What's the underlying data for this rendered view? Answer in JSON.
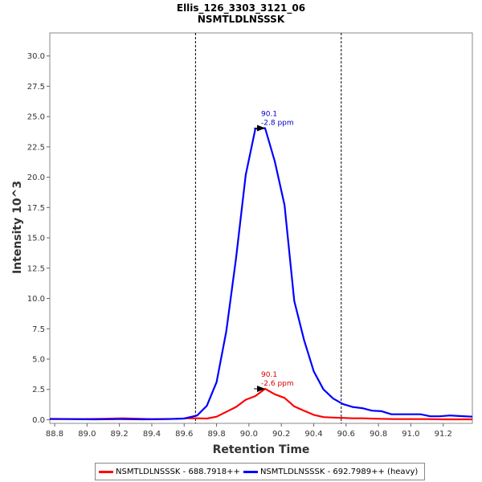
{
  "chart_data": {
    "type": "line",
    "title": "Ellis_126_3303_3121_06",
    "subtitle": "NSMTLDLNSSSK",
    "xlabel": "Retention Time",
    "ylabel": "Intensity 10^3",
    "xlim": [
      88.77,
      91.38
    ],
    "ylim": [
      -0.3,
      31.9
    ],
    "x_ticks": [
      "88.8",
      "89.0",
      "89.2",
      "89.4",
      "89.6",
      "89.8",
      "90.0",
      "90.2",
      "90.4",
      "90.6",
      "90.8",
      "91.0",
      "91.2"
    ],
    "y_ticks": [
      "0.0",
      "2.5",
      "5.0",
      "7.5",
      "10.0",
      "12.5",
      "15.0",
      "17.5",
      "20.0",
      "22.5",
      "25.0",
      "27.5",
      "30.0"
    ],
    "integration_bounds": [
      89.67,
      90.57
    ],
    "series": [
      {
        "name": "NSMTLDLNSSSK - 688.7918++",
        "color": "#ff0000",
        "x": [
          88.77,
          88.95,
          89.1,
          89.22,
          89.4,
          89.55,
          89.62,
          89.68,
          89.74,
          89.8,
          89.86,
          89.92,
          89.98,
          90.04,
          90.1,
          90.16,
          90.22,
          90.28,
          90.34,
          90.4,
          90.46,
          90.52,
          90.58,
          90.64,
          90.7,
          90.8,
          90.9,
          91.0,
          91.1,
          91.2,
          91.38
        ],
        "values": [
          0.08,
          0.05,
          0.08,
          0.12,
          0.05,
          0.08,
          0.12,
          0.12,
          0.1,
          0.25,
          0.65,
          1.05,
          1.65,
          1.95,
          2.55,
          2.1,
          1.8,
          1.1,
          0.75,
          0.4,
          0.22,
          0.18,
          0.15,
          0.12,
          0.12,
          0.08,
          0.05,
          0.05,
          0.05,
          0.03,
          0.03
        ]
      },
      {
        "name": "NSMTLDLNSSSK - 692.7989++ (heavy)",
        "color": "#0000ff",
        "x": [
          88.77,
          88.9,
          89.05,
          89.2,
          89.35,
          89.5,
          89.6,
          89.68,
          89.74,
          89.8,
          89.86,
          89.92,
          89.98,
          90.04,
          90.1,
          90.16,
          90.22,
          90.28,
          90.34,
          90.4,
          90.46,
          90.52,
          90.58,
          90.64,
          90.7,
          90.76,
          90.82,
          90.88,
          90.94,
          91.0,
          91.06,
          91.12,
          91.18,
          91.24,
          91.3,
          91.38
        ],
        "values": [
          0.05,
          0.05,
          0.03,
          0.05,
          0.03,
          0.05,
          0.1,
          0.35,
          1.15,
          3.1,
          7.3,
          13.3,
          20.2,
          24.0,
          24.05,
          21.3,
          17.7,
          9.8,
          6.6,
          4.0,
          2.5,
          1.75,
          1.3,
          1.05,
          0.95,
          0.75,
          0.7,
          0.45,
          0.45,
          0.45,
          0.45,
          0.28,
          0.28,
          0.35,
          0.3,
          0.25
        ]
      }
    ],
    "annotations": [
      {
        "series": 1,
        "x": 90.1,
        "y": 24.05,
        "lines": [
          "90.1",
          "-2.8 ppm"
        ],
        "color": "#0000cc"
      },
      {
        "series": 0,
        "x": 90.1,
        "y": 2.55,
        "lines": [
          "90.1",
          "-2.6 ppm"
        ],
        "color": "#dd0000"
      }
    ],
    "grid": false,
    "legend_position": "bottom"
  }
}
